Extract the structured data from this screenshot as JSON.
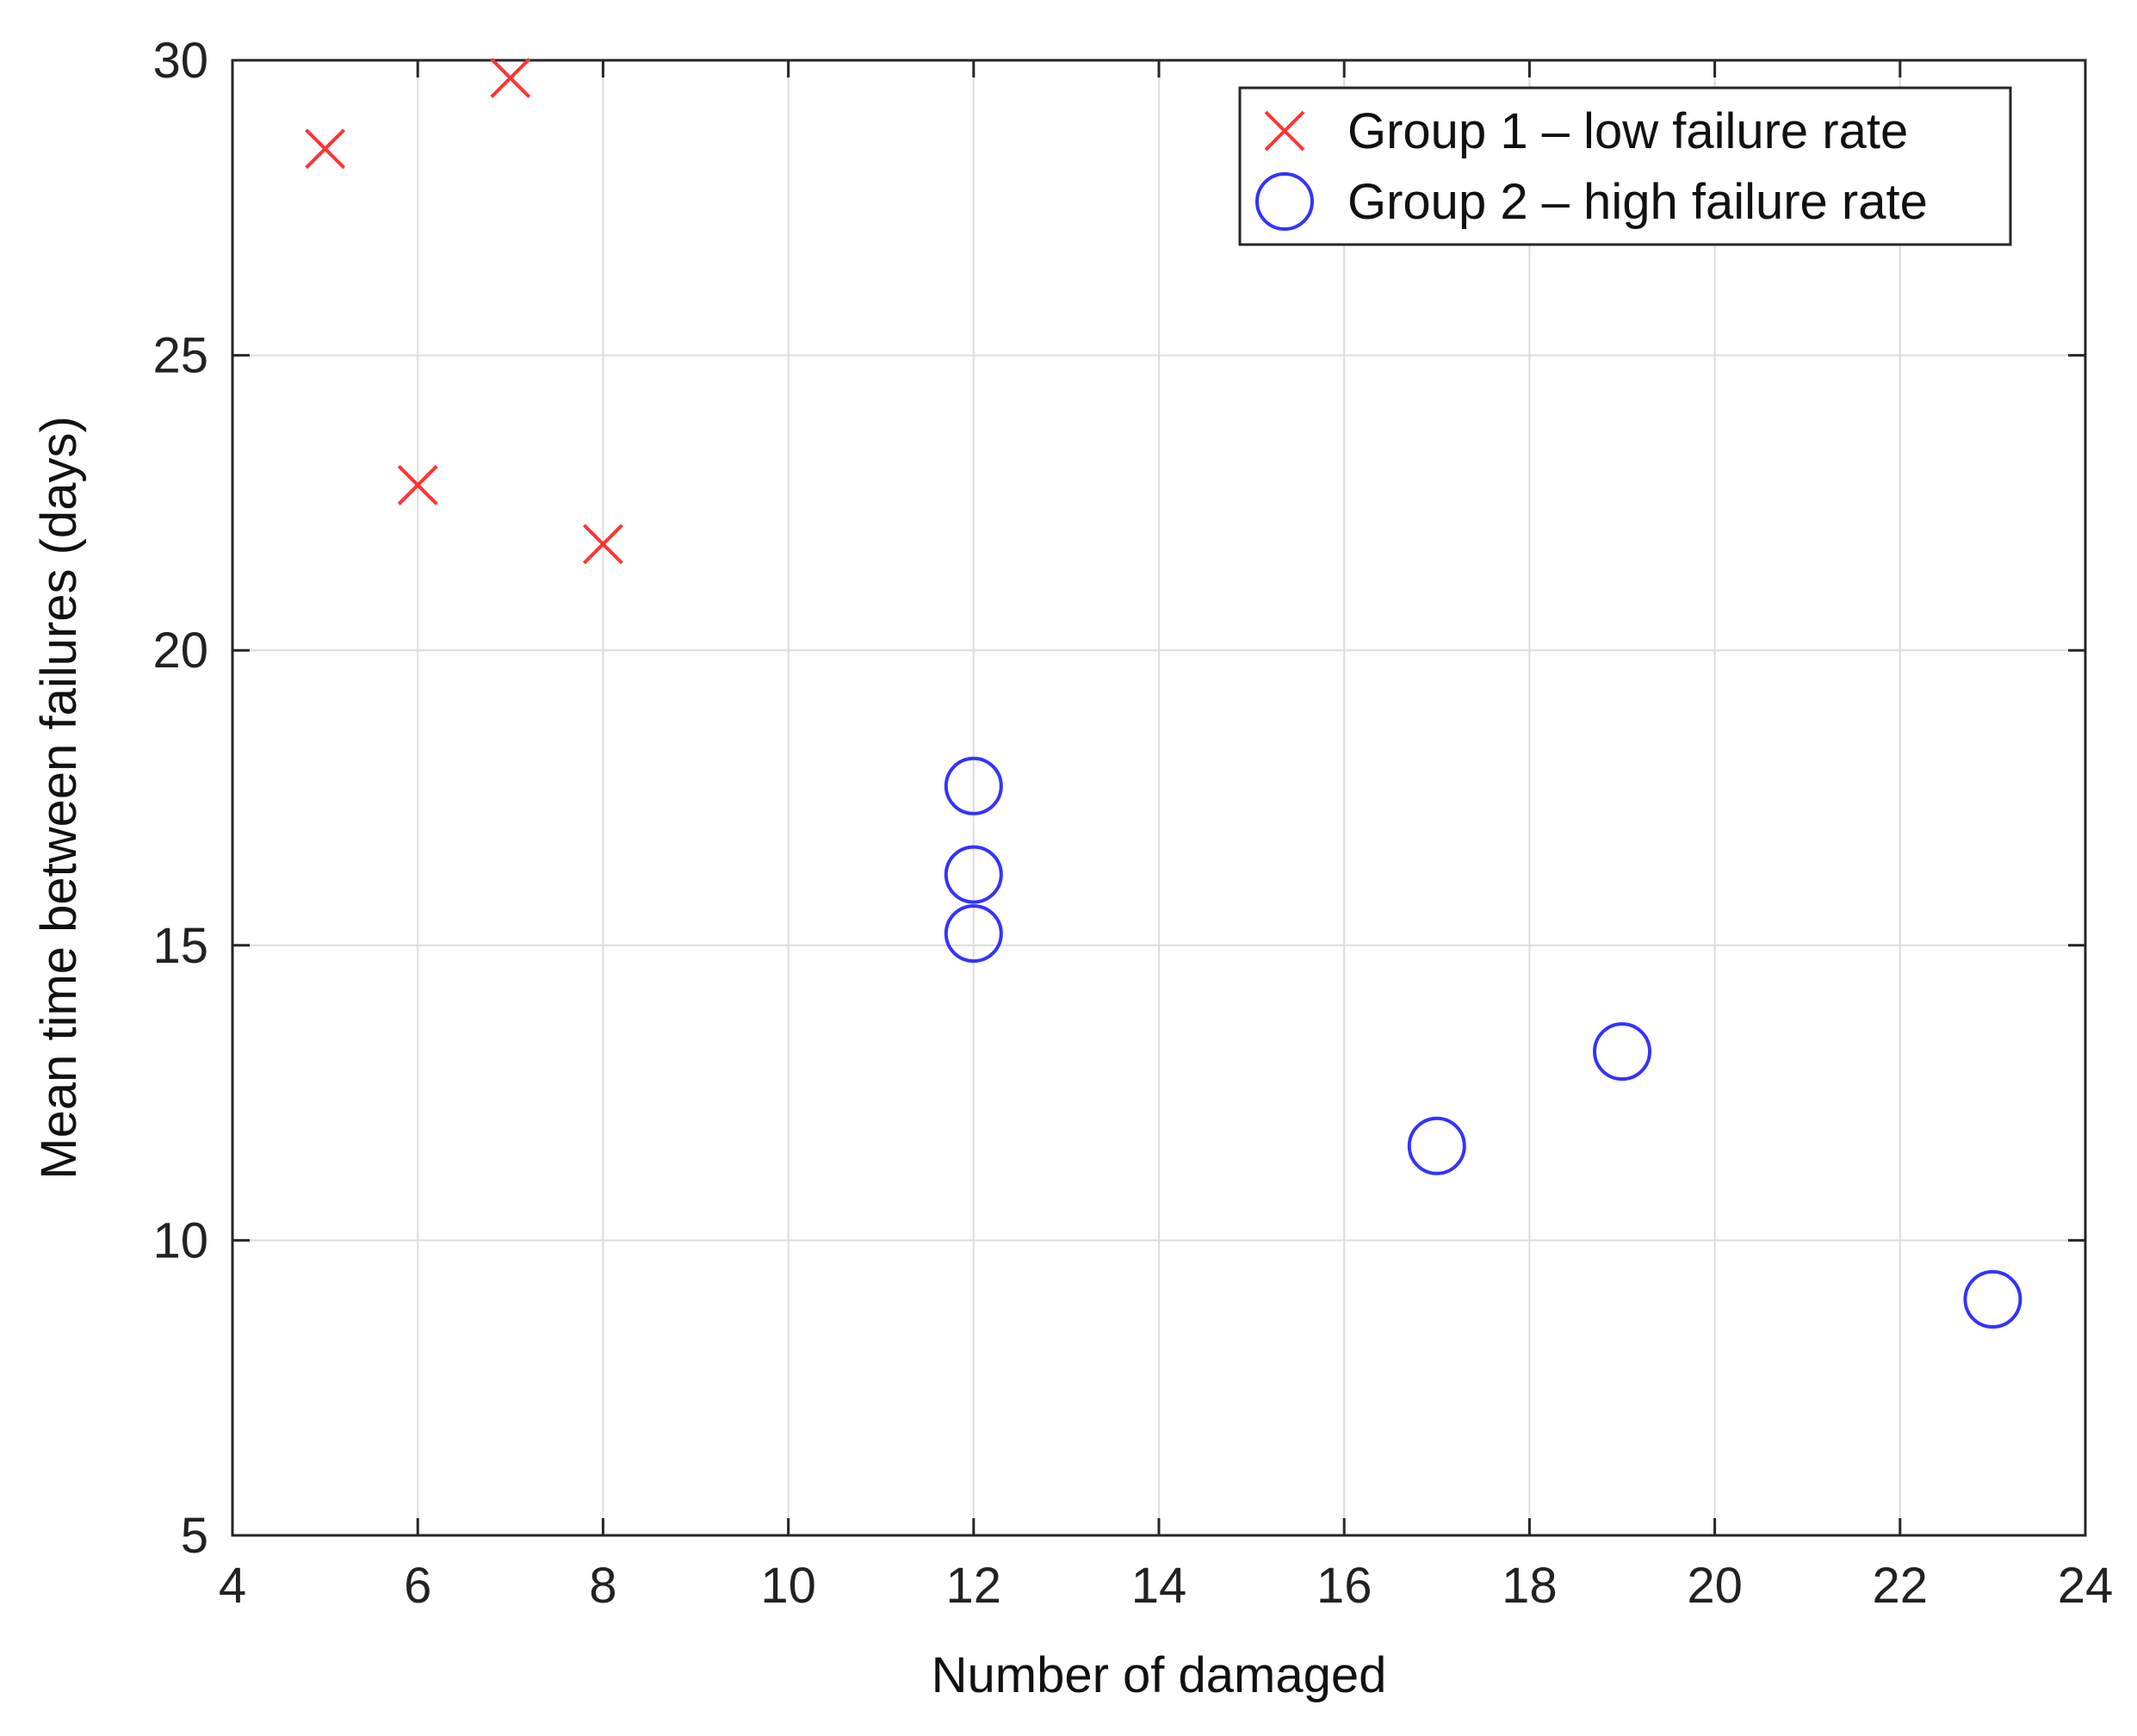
{
  "chart_data": {
    "type": "scatter",
    "title": "",
    "xlabel": "Number of damaged",
    "ylabel": "Mean time between failures (days)",
    "xlim": [
      4,
      24
    ],
    "ylim": [
      5,
      30
    ],
    "xticks": [
      4,
      6,
      8,
      10,
      12,
      14,
      16,
      18,
      20,
      22,
      24
    ],
    "yticks": [
      5,
      10,
      15,
      20,
      25,
      30
    ],
    "grid": true,
    "legend_position": "top-right",
    "series": [
      {
        "name": "Group 1 – low failure rate",
        "marker": "x",
        "color": "#ff3333",
        "points": [
          {
            "x": 5,
            "y": 28.5
          },
          {
            "x": 6,
            "y": 22.8
          },
          {
            "x": 7,
            "y": 29.7
          },
          {
            "x": 8,
            "y": 21.8
          }
        ]
      },
      {
        "name": "Group 2 – high failure rate",
        "marker": "circle",
        "color": "#3333ff",
        "points": [
          {
            "x": 12,
            "y": 17.7
          },
          {
            "x": 12,
            "y": 16.2
          },
          {
            "x": 12,
            "y": 15.2
          },
          {
            "x": 17,
            "y": 11.6
          },
          {
            "x": 19,
            "y": 13.2
          },
          {
            "x": 23,
            "y": 9.0
          }
        ]
      }
    ]
  }
}
